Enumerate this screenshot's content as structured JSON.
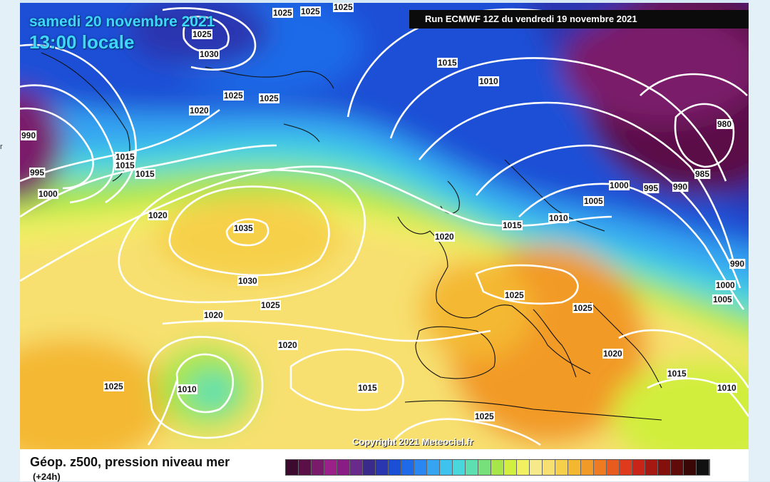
{
  "map": {
    "date_line": "samedi 20 novembre 2021",
    "time_line": "13:00 locale",
    "run_info": "Run ECMWF 12Z du vendredi 19 novembre 2021",
    "copyright": "Copyright 2021 Meteociel.fr",
    "map_name": "Géop. z500, pression niveau mer",
    "forecast_step": "(+24h)",
    "side_fragment": "r",
    "isobar_labels": [
      "1025",
      "1025",
      "1025",
      "1025",
      "1030",
      "1025",
      "1025",
      "1020",
      "990",
      "995",
      "1000",
      "1015",
      "1015",
      "1015",
      "1015",
      "1010",
      "980",
      "985",
      "990",
      "995",
      "1000",
      "1005",
      "1010",
      "1015",
      "1020",
      "1020",
      "1035",
      "1030",
      "1025",
      "1020",
      "1020",
      "1025",
      "1010",
      "1015",
      "1025",
      "1025",
      "1025",
      "1020",
      "1015",
      "1010",
      "990",
      "1000",
      "1005"
    ],
    "color_scale": [
      "#3b0a2e",
      "#5a1046",
      "#7a1a6a",
      "#9a208a",
      "#8a1c86",
      "#6a2a8a",
      "#3a2a8a",
      "#2a35b0",
      "#1b4fd6",
      "#1e6ae8",
      "#2a86f0",
      "#35a5f2",
      "#3ec2ee",
      "#48d8dc",
      "#5de0b0",
      "#78e07a",
      "#a6e64a",
      "#d2ee3e",
      "#f0f060",
      "#f5e98a",
      "#f7e070",
      "#f6d04a",
      "#f4b830",
      "#f29a28",
      "#ee7a22",
      "#e85a1e",
      "#e03a1c",
      "#c82418",
      "#a81812",
      "#84100e",
      "#600a0a",
      "#3a0606",
      "#111111"
    ]
  }
}
